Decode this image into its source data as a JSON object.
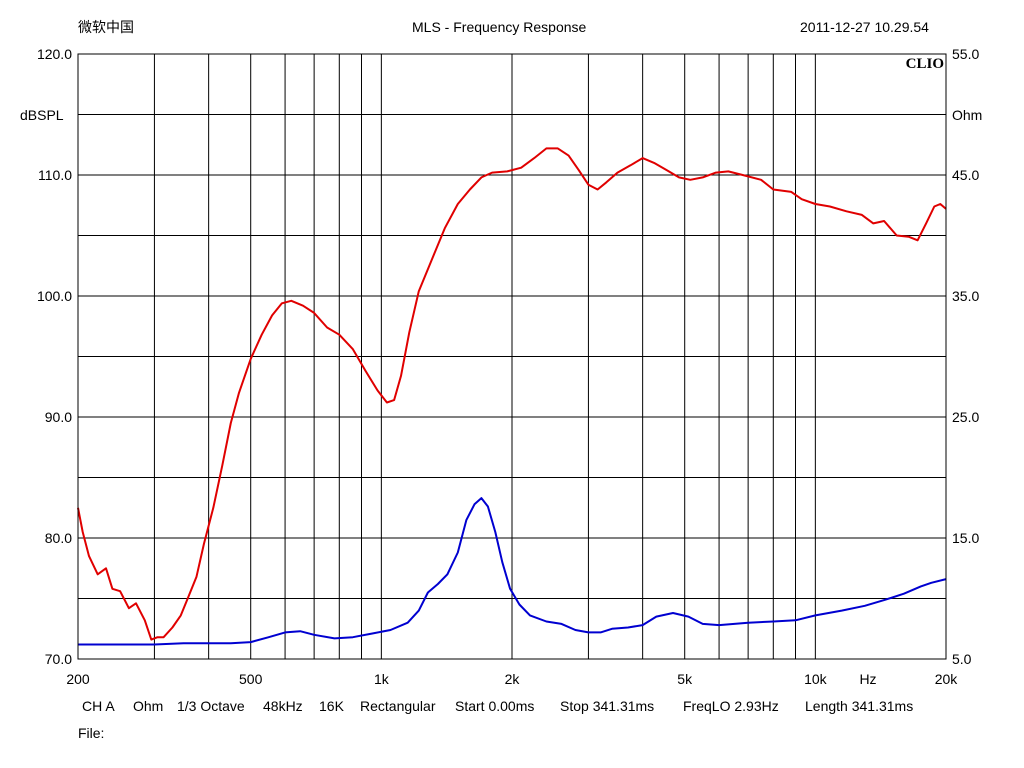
{
  "header": {
    "left": "微软中国",
    "title": "MLS - Frequency Response",
    "right": "2011-12-27 10.29.54"
  },
  "footer": {
    "items": [
      "CH A",
      "Ohm",
      "1/3 Octave",
      "48kHz",
      "16K",
      "Rectangular",
      "Start 0.00ms",
      "Stop 341.31ms",
      "FreqLO 2.93Hz",
      "Length 341.31ms"
    ],
    "file_label": "File:"
  },
  "chart_data": {
    "type": "line",
    "title": "MLS - Frequency Response",
    "brand": "CLIO",
    "x_scale": "log",
    "xlim": [
      200,
      20000
    ],
    "x_tick_labels": [
      {
        "v": 200,
        "label": "200"
      },
      {
        "v": 500,
        "label": "500"
      },
      {
        "v": 1000,
        "label": "1k"
      },
      {
        "v": 2000,
        "label": "2k"
      },
      {
        "v": 5000,
        "label": "5k"
      },
      {
        "v": 10000,
        "label": "10k"
      },
      {
        "v": 20000,
        "label": "20k"
      }
    ],
    "x_unit_label": "Hz",
    "x_gridlines": [
      200,
      300,
      400,
      500,
      600,
      700,
      800,
      900,
      1000,
      2000,
      3000,
      4000,
      5000,
      6000,
      7000,
      8000,
      9000,
      10000,
      20000
    ],
    "y_left": {
      "label": "dBSPL",
      "lim": [
        70,
        120
      ],
      "ticks": [
        "120.0",
        "110.0",
        "100.0",
        "90.0",
        "80.0",
        "70.0"
      ],
      "step": 10
    },
    "y_right": {
      "label": "Ohm",
      "lim": [
        5,
        55
      ],
      "ticks": [
        "55.0",
        "45.0",
        "35.0",
        "25.0",
        "15.0",
        "5.0"
      ],
      "step": 10
    },
    "grid": true,
    "series": [
      {
        "axis": "left",
        "color": "#e00000",
        "points": [
          [
            200,
            82.5
          ],
          [
            205,
            80.5
          ],
          [
            212,
            78.5
          ],
          [
            222,
            77
          ],
          [
            232,
            77.5
          ],
          [
            240,
            75.8
          ],
          [
            250,
            75.6
          ],
          [
            262,
            74.2
          ],
          [
            272,
            74.6
          ],
          [
            285,
            73.2
          ],
          [
            295,
            71.6
          ],
          [
            305,
            71.8
          ],
          [
            315,
            71.8
          ],
          [
            330,
            72.6
          ],
          [
            345,
            73.6
          ],
          [
            358,
            75.0
          ],
          [
            375,
            76.8
          ],
          [
            390,
            79.5
          ],
          [
            410,
            82.5
          ],
          [
            430,
            86.0
          ],
          [
            450,
            89.5
          ],
          [
            470,
            92.0
          ],
          [
            500,
            94.8
          ],
          [
            530,
            96.8
          ],
          [
            560,
            98.4
          ],
          [
            590,
            99.4
          ],
          [
            620,
            99.6
          ],
          [
            660,
            99.2
          ],
          [
            700,
            98.6
          ],
          [
            750,
            97.4
          ],
          [
            800,
            96.8
          ],
          [
            860,
            95.6
          ],
          [
            920,
            93.8
          ],
          [
            980,
            92.2
          ],
          [
            1030,
            91.2
          ],
          [
            1070,
            91.4
          ],
          [
            1110,
            93.4
          ],
          [
            1160,
            97.0
          ],
          [
            1220,
            100.4
          ],
          [
            1300,
            102.8
          ],
          [
            1400,
            105.6
          ],
          [
            1500,
            107.6
          ],
          [
            1600,
            108.8
          ],
          [
            1700,
            109.8
          ],
          [
            1800,
            110.2
          ],
          [
            1950,
            110.3
          ],
          [
            2100,
            110.6
          ],
          [
            2250,
            111.4
          ],
          [
            2400,
            112.2
          ],
          [
            2550,
            112.2
          ],
          [
            2700,
            111.6
          ],
          [
            2850,
            110.4
          ],
          [
            3000,
            109.2
          ],
          [
            3150,
            108.8
          ],
          [
            3300,
            109.4
          ],
          [
            3500,
            110.2
          ],
          [
            3750,
            110.8
          ],
          [
            4000,
            111.4
          ],
          [
            4250,
            111.0
          ],
          [
            4550,
            110.4
          ],
          [
            4850,
            109.8
          ],
          [
            5150,
            109.6
          ],
          [
            5500,
            109.8
          ],
          [
            5900,
            110.2
          ],
          [
            6300,
            110.3
          ],
          [
            6800,
            110.0
          ],
          [
            7500,
            109.6
          ],
          [
            8000,
            108.8
          ],
          [
            8800,
            108.6
          ],
          [
            9300,
            108.0
          ],
          [
            10000,
            107.6
          ],
          [
            10800,
            107.4
          ],
          [
            11800,
            107.0
          ],
          [
            12800,
            106.7
          ],
          [
            13600,
            106.0
          ],
          [
            14400,
            106.2
          ],
          [
            15400,
            105.0
          ],
          [
            16400,
            104.9
          ],
          [
            17200,
            104.6
          ],
          [
            18000,
            106.0
          ],
          [
            18800,
            107.4
          ],
          [
            19400,
            107.6
          ],
          [
            20000,
            107.2
          ]
        ]
      },
      {
        "axis": "right",
        "color": "#0000d0",
        "points": [
          [
            200,
            6.2
          ],
          [
            250,
            6.2
          ],
          [
            300,
            6.2
          ],
          [
            350,
            6.3
          ],
          [
            400,
            6.3
          ],
          [
            450,
            6.3
          ],
          [
            500,
            6.4
          ],
          [
            550,
            6.8
          ],
          [
            600,
            7.2
          ],
          [
            650,
            7.3
          ],
          [
            700,
            7.0
          ],
          [
            780,
            6.7
          ],
          [
            860,
            6.8
          ],
          [
            950,
            7.1
          ],
          [
            1050,
            7.4
          ],
          [
            1150,
            8.0
          ],
          [
            1220,
            9.0
          ],
          [
            1280,
            10.5
          ],
          [
            1350,
            11.2
          ],
          [
            1420,
            12.0
          ],
          [
            1500,
            13.8
          ],
          [
            1570,
            16.5
          ],
          [
            1640,
            17.8
          ],
          [
            1700,
            18.3
          ],
          [
            1760,
            17.6
          ],
          [
            1830,
            15.5
          ],
          [
            1900,
            13.0
          ],
          [
            1980,
            10.8
          ],
          [
            2080,
            9.5
          ],
          [
            2200,
            8.6
          ],
          [
            2400,
            8.1
          ],
          [
            2600,
            7.9
          ],
          [
            2800,
            7.4
          ],
          [
            3000,
            7.2
          ],
          [
            3200,
            7.2
          ],
          [
            3400,
            7.5
          ],
          [
            3700,
            7.6
          ],
          [
            4000,
            7.8
          ],
          [
            4300,
            8.5
          ],
          [
            4700,
            8.8
          ],
          [
            5100,
            8.5
          ],
          [
            5500,
            7.9
          ],
          [
            6000,
            7.8
          ],
          [
            7000,
            8.0
          ],
          [
            8000,
            8.1
          ],
          [
            9000,
            8.2
          ],
          [
            10000,
            8.6
          ],
          [
            11500,
            9.0
          ],
          [
            13000,
            9.4
          ],
          [
            14500,
            9.9
          ],
          [
            16000,
            10.4
          ],
          [
            17500,
            11.0
          ],
          [
            18500,
            11.3
          ],
          [
            20000,
            11.6
          ]
        ]
      }
    ]
  }
}
